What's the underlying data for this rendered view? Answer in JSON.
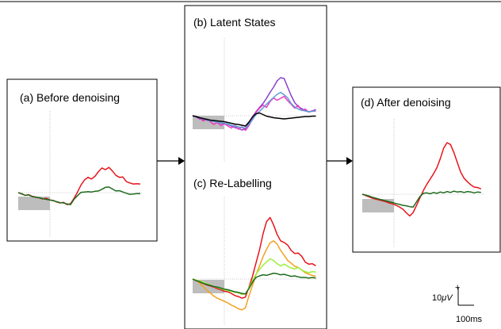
{
  "chart_data": [
    {
      "type": "line",
      "title": "(a) Before denoising",
      "x": [
        -200,
        -180,
        -160,
        -140,
        -120,
        -100,
        -80,
        -60,
        -40,
        -20,
        0,
        20,
        40,
        60,
        80,
        100,
        120,
        140,
        160,
        180,
        200,
        220,
        240,
        260,
        280,
        300,
        320,
        340,
        360,
        380,
        400,
        420,
        440,
        460,
        480,
        500
      ],
      "series": [
        {
          "color": "#e8141b",
          "values": [
            0,
            -0.4,
            -0.8,
            -0.6,
            -1.1,
            -1.3,
            -1.6,
            -1.9,
            -1.7,
            -2.2,
            -2.3,
            -2.8,
            -3.1,
            -2.9,
            -3.6,
            -3.3,
            -1.7,
            0.2,
            2.3,
            3.8,
            4.6,
            4.1,
            4.9,
            6.3,
            7.4,
            6.9,
            7.6,
            6.5,
            5.2,
            4.6,
            4.7,
            3.3,
            2.9,
            2.6,
            2.7,
            2.6
          ]
        },
        {
          "color": "#1e6b1e",
          "values": [
            0,
            -0.3,
            -0.8,
            -0.7,
            -1.2,
            -1.4,
            -1.5,
            -1.8,
            -2.0,
            -2.2,
            -2.4,
            -2.7,
            -3.0,
            -3.1,
            -3.4,
            -3.6,
            -2.0,
            -0.9,
            0.1,
            0.2,
            0.3,
            0.2,
            0.4,
            0.5,
            1.0,
            1.6,
            1.7,
            1.1,
            0.5,
            0.6,
            0.2,
            -0.2,
            -0.5,
            -0.4,
            -0.3,
            -0.3
          ]
        }
      ]
    },
    {
      "type": "line",
      "title": "(b) Latent States",
      "x": [
        -200,
        -180,
        -160,
        -140,
        -120,
        -100,
        -80,
        -60,
        -40,
        -20,
        0,
        20,
        40,
        60,
        80,
        100,
        120,
        140,
        160,
        180,
        200,
        220,
        240,
        260,
        280,
        300,
        320,
        340,
        360,
        380,
        400,
        420,
        440,
        460,
        480,
        500
      ],
      "series": [
        {
          "color": "#8a3fd0",
          "values": [
            0,
            -0.3,
            -0.8,
            -1.0,
            -1.1,
            -1.3,
            -1.4,
            -1.6,
            -1.9,
            -2.1,
            -2.2,
            -2.6,
            -3.0,
            -3.2,
            -3.6,
            -3.3,
            -1.8,
            -0.3,
            1.0,
            2.1,
            3.1,
            4.4,
            5.9,
            7.2,
            8.8,
            9.6,
            9.4,
            7.2,
            5.1,
            3.3,
            2.3,
            1.8,
            1.3,
            1.0,
            1.2,
            1.6
          ]
        },
        {
          "color": "#f03bc0",
          "values": [
            0,
            -0.2,
            -0.6,
            -1.3,
            -0.9,
            -1.5,
            -2.2,
            -1.7,
            -2.5,
            -1.9,
            -2.6,
            -3.1,
            -2.4,
            -3.4,
            -2.8,
            -3.7,
            -2.5,
            -0.8,
            0.8,
            1.9,
            2.7,
            2.1,
            3.6,
            4.5,
            3.9,
            4.4,
            4.9,
            3.8,
            2.9,
            1.9,
            2.6,
            1.3,
            1.7,
            0.9,
            1.3,
            1.1
          ]
        },
        {
          "color": "#5b9bd5",
          "values": [
            0,
            -0.2,
            -0.5,
            -0.8,
            -1.0,
            -1.3,
            -1.4,
            -1.6,
            -1.8,
            -1.9,
            -2.1,
            -2.4,
            -2.6,
            -2.8,
            -3.0,
            -3.1,
            -2.2,
            -1.0,
            0.3,
            1.1,
            2.0,
            2.9,
            3.8,
            4.6,
            5.4,
            5.9,
            5.3,
            4.5,
            3.1,
            2.2,
            1.7,
            1.4,
            1.2,
            1.0,
            1.1,
            1.3
          ]
        },
        {
          "color": "#000000",
          "values": [
            0,
            -0.2,
            -0.5,
            -0.7,
            -0.9,
            -1.1,
            -1.2,
            -1.3,
            -1.4,
            -1.5,
            -1.7,
            -1.9,
            -2.1,
            -2.2,
            -2.4,
            -2.6,
            -1.6,
            -0.3,
            0.5,
            0.7,
            0.3,
            -0.1,
            -0.3,
            -0.5,
            -0.6,
            -0.7,
            -0.8,
            -0.7,
            -0.6,
            -0.5,
            -0.4,
            -0.3,
            -0.2,
            -0.2,
            -0.1,
            -0.1
          ]
        }
      ]
    },
    {
      "type": "line",
      "title": "(c) Re-Labelling",
      "x": [
        -200,
        -180,
        -160,
        -140,
        -120,
        -100,
        -80,
        -60,
        -40,
        -20,
        0,
        20,
        40,
        60,
        80,
        100,
        120,
        140,
        160,
        180,
        200,
        220,
        240,
        260,
        280,
        300,
        320,
        340,
        360,
        380,
        400,
        420,
        440,
        460,
        480,
        500
      ],
      "series": [
        {
          "color": "#e8141b",
          "values": [
            0,
            -0.3,
            -0.6,
            -0.8,
            -1.1,
            -1.3,
            -1.5,
            -1.8,
            -2.0,
            -2.3,
            -2.4,
            -2.7,
            -3.1,
            -3.3,
            -3.6,
            -3.4,
            -1.5,
            0.5,
            3.0,
            5.5,
            8.5,
            10.8,
            11.6,
            10.2,
            8.4,
            7.2,
            6.9,
            6.4,
            5.4,
            4.8,
            4.9,
            4.3,
            3.2,
            2.8,
            2.9,
            2.5
          ]
        },
        {
          "color": "#f4a020",
          "values": [
            0,
            -0.2,
            -0.8,
            -1.4,
            -2.1,
            -2.6,
            -3.2,
            -3.6,
            -3.9,
            -4.2,
            -4.5,
            -4.9,
            -5.2,
            -5.6,
            -5.8,
            -5.4,
            -3.2,
            -1.2,
            0.8,
            2.5,
            4.2,
            5.6,
            6.8,
            7.2,
            6.6,
            5.4,
            4.5,
            3.5,
            3.0,
            2.4,
            2.2,
            1.7,
            1.2,
            0.9,
            0.7,
            0.5
          ]
        },
        {
          "color": "#9ef03a",
          "values": [
            0,
            -0.2,
            -0.4,
            -0.6,
            -0.9,
            -1.1,
            -1.4,
            -1.6,
            -1.8,
            -2.0,
            -2.2,
            -2.3,
            -2.5,
            -2.6,
            -2.9,
            -2.8,
            -1.6,
            -0.3,
            0.9,
            1.8,
            2.6,
            3.2,
            3.8,
            3.5,
            2.9,
            2.5,
            2.8,
            2.4,
            2.1,
            1.9,
            2.2,
            1.7,
            1.4,
            1.2,
            1.4,
            1.3
          ]
        },
        {
          "color": "#1e6b1e",
          "values": [
            0,
            -0.3,
            -0.5,
            -0.8,
            -1.0,
            -1.2,
            -1.4,
            -1.5,
            -1.7,
            -1.9,
            -2.0,
            -2.2,
            -2.4,
            -2.5,
            -2.7,
            -2.8,
            -1.8,
            -0.6,
            0.3,
            0.6,
            0.8,
            0.7,
            0.9,
            1.1,
            1.0,
            0.8,
            0.9,
            0.7,
            0.5,
            0.6,
            0.4,
            0.3,
            0.3,
            0.2,
            0.3,
            0.2
          ]
        }
      ]
    },
    {
      "type": "line",
      "title": "(d) After denoising",
      "x": [
        -200,
        -180,
        -160,
        -140,
        -120,
        -100,
        -80,
        -60,
        -40,
        -20,
        0,
        20,
        40,
        60,
        80,
        100,
        120,
        140,
        160,
        180,
        200,
        220,
        240,
        260,
        280,
        300,
        320,
        340,
        360,
        380,
        400,
        420,
        440,
        460,
        480,
        500
      ],
      "series": [
        {
          "color": "#e8141b",
          "values": [
            0,
            -0.3,
            -0.6,
            -0.9,
            -1.1,
            -1.3,
            -1.5,
            -1.7,
            -2.0,
            -2.2,
            -2.5,
            -2.9,
            -3.4,
            -4.2,
            -4.9,
            -4.1,
            -2.5,
            -0.8,
            0.8,
            2.2,
            3.4,
            4.6,
            6.0,
            8.0,
            10.4,
            11.6,
            11.2,
            9.4,
            7.2,
            5.0,
            3.6,
            2.8,
            2.1,
            1.6,
            1.5,
            1.2
          ]
        },
        {
          "color": "#1e6b1e",
          "values": [
            0,
            -0.2,
            -0.4,
            -0.7,
            -0.9,
            -1.1,
            -1.3,
            -1.5,
            -1.7,
            -1.9,
            -2.1,
            -2.3,
            -2.5,
            -2.6,
            -2.8,
            -2.9,
            -1.7,
            -0.5,
            0.2,
            0.3,
            0.1,
            0.4,
            0.2,
            0.5,
            0.3,
            0.6,
            0.4,
            0.7,
            0.5,
            0.6,
            0.4,
            0.6,
            0.5,
            0.3,
            0.5,
            0.4
          ]
        }
      ]
    }
  ],
  "scalebar": {
    "amplitude_label": "10",
    "amplitude_unit": "μV",
    "polarity": "+",
    "time_label": "100ms"
  }
}
